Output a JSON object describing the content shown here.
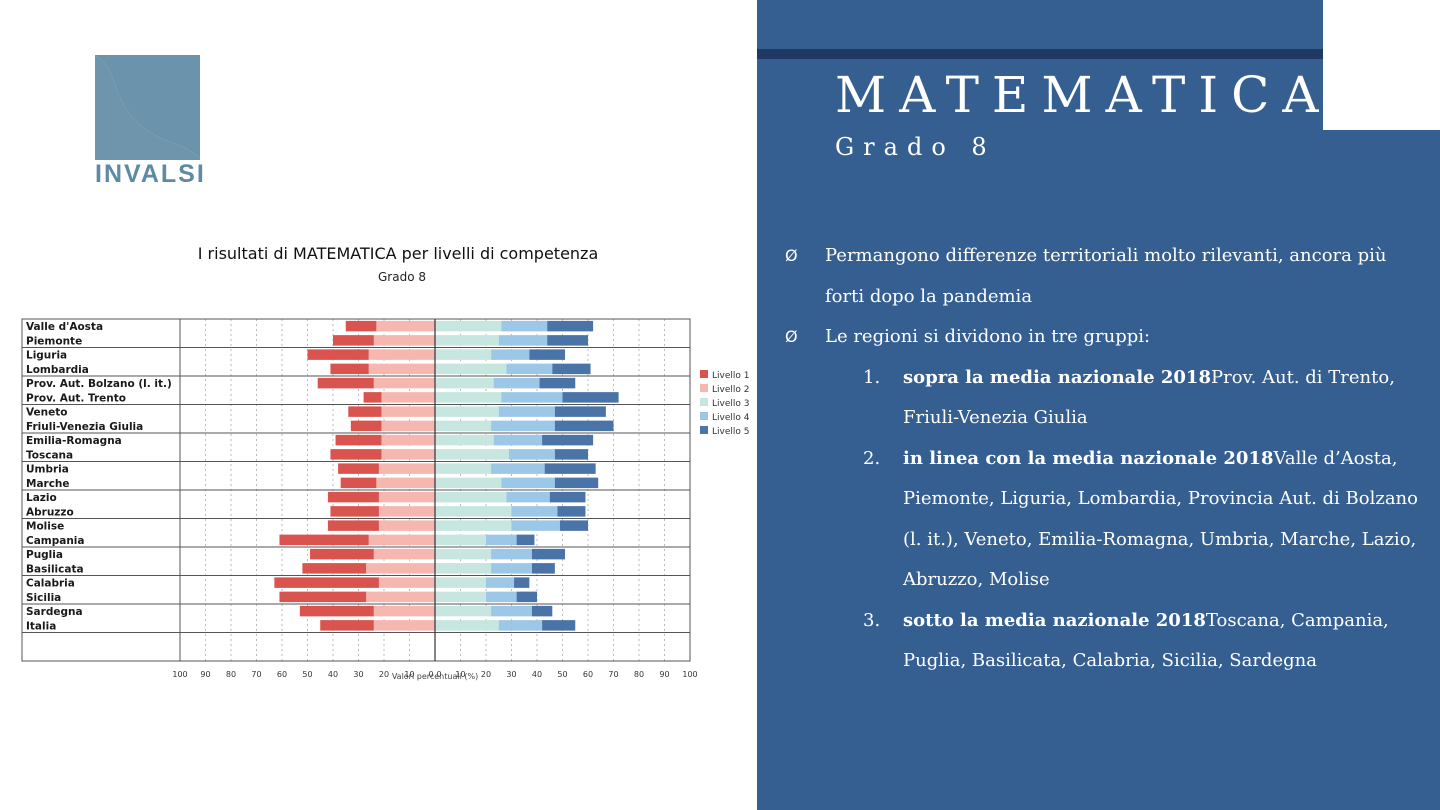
{
  "slide": {
    "title": "MATEMATICA",
    "subtitle": "Grado 8",
    "logo_text": "INVALSI",
    "colors": {
      "panel": "#365f91",
      "bar": "#1f3864",
      "logo": "#5e8aa3"
    }
  },
  "chart_heading": {
    "title": "I risultati di MATEMATICA per livelli di competenza",
    "subtitle": "Grado 8"
  },
  "bullets": [
    {
      "marker": "Ø",
      "text": "Permangono differenze territoriali molto rilevanti, ancora più forti dopo la pandemia"
    },
    {
      "marker": "Ø",
      "text": "Le regioni si dividono in tre gruppi:"
    }
  ],
  "groups": [
    {
      "num": "1.",
      "label": "sopra la media nazionale 2018",
      "regions": "Prov. Aut. di Trento, Friuli-Venezia Giulia"
    },
    {
      "num": "2.",
      "label": "in linea con la media nazionale 2018",
      "regions": "Valle d’Aosta, Piemonte, Liguria, Lombardia, Provincia Aut. di Bolzano (l. it.), Veneto, Emilia-Romagna, Umbria, Marche, Lazio, Abruzzo, Molise"
    },
    {
      "num": "3.",
      "label": "sotto la media nazionale 2018",
      "regions": "Toscana, Campania, Puglia, Basilicata, Calabria, Sicilia, Sardegna"
    }
  ],
  "chart_data": {
    "type": "bar",
    "orientation": "horizontal-diverging",
    "xlabel": "Valori percentuali (%)",
    "xticks": [
      "100",
      "90",
      "80",
      "70",
      "60",
      "50",
      "40",
      "30",
      "20",
      "10",
      "0",
      "0",
      "10",
      "20",
      "30",
      "40",
      "50",
      "60",
      "70",
      "80",
      "90",
      "100"
    ],
    "xlim_left": [
      0,
      100
    ],
    "xlim_right": [
      0,
      100
    ],
    "legend_position": "right",
    "grid": true,
    "series": [
      {
        "name": "Livello 1",
        "color": "#d9534f",
        "side": "left"
      },
      {
        "name": "Livello 2",
        "color": "#f7b7b1",
        "side": "left"
      },
      {
        "name": "Livello 3",
        "color": "#c6e6df",
        "side": "right"
      },
      {
        "name": "Livello 4",
        "color": "#9cc7e6",
        "side": "right"
      },
      {
        "name": "Livello 5",
        "color": "#4a74a8",
        "side": "right"
      }
    ],
    "categories": [
      "Valle d'Aosta",
      "Piemonte",
      "Liguria",
      "Lombardia",
      "Prov. Aut. Bolzano (l. it.)",
      "Prov. Aut. Trento",
      "Veneto",
      "Friuli-Venezia Giulia",
      "Emilia-Romagna",
      "Toscana",
      "Umbria",
      "Marche",
      "Lazio",
      "Abruzzo",
      "Molise",
      "Campania",
      "Puglia",
      "Basilicata",
      "Calabria",
      "Sicilia",
      "Sardegna",
      "Italia"
    ],
    "values": [
      [
        12,
        23,
        26,
        18,
        18
      ],
      [
        16,
        24,
        25,
        19,
        16
      ],
      [
        24,
        26,
        22,
        15,
        14
      ],
      [
        15,
        26,
        28,
        18,
        15
      ],
      [
        22,
        24,
        23,
        18,
        14
      ],
      [
        7,
        21,
        26,
        24,
        22
      ],
      [
        13,
        21,
        25,
        22,
        20
      ],
      [
        12,
        21,
        22,
        25,
        23
      ],
      [
        18,
        21,
        23,
        19,
        20
      ],
      [
        20,
        21,
        29,
        18,
        13
      ],
      [
        16,
        22,
        22,
        21,
        20
      ],
      [
        14,
        23,
        26,
        21,
        17
      ],
      [
        20,
        22,
        28,
        17,
        14
      ],
      [
        19,
        22,
        30,
        18,
        11
      ],
      [
        20,
        22,
        30,
        19,
        11
      ],
      [
        35,
        26,
        20,
        12,
        7
      ],
      [
        25,
        24,
        22,
        16,
        13
      ],
      [
        25,
        27,
        22,
        16,
        9
      ],
      [
        41,
        22,
        20,
        11,
        6
      ],
      [
        34,
        27,
        20,
        12,
        8
      ],
      [
        29,
        24,
        22,
        16,
        8
      ],
      [
        21,
        24,
        25,
        17,
        13
      ]
    ]
  }
}
